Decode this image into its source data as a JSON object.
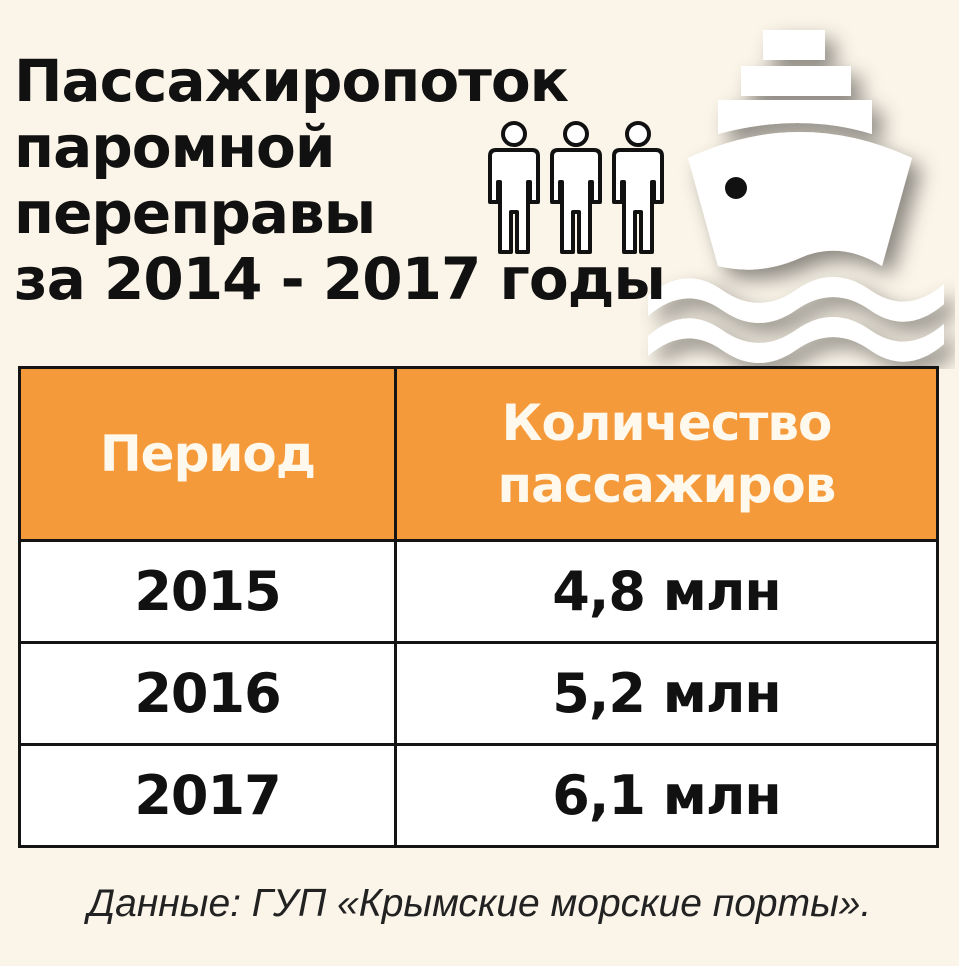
{
  "title_lines": [
    "Пассажиропоток",
    "паромной",
    "переправы",
    "за 2014 - 2017 годы"
  ],
  "chart_data": {
    "type": "table",
    "columns": [
      "Период",
      "Количество пассажиров"
    ],
    "header_lines": [
      [
        "Период"
      ],
      [
        "Количество",
        "пассажиров"
      ]
    ],
    "rows": [
      {
        "period": "2015",
        "passengers": "4,8 млн"
      },
      {
        "period": "2016",
        "passengers": "5,2 млн"
      },
      {
        "period": "2017",
        "passengers": "6,1 млн"
      }
    ],
    "unit": "млн"
  },
  "source": "Данные: ГУП «Крымские морские порты».",
  "icons": [
    "people-icon",
    "ship-icon",
    "waves-icon"
  ],
  "colors": {
    "header_bg": "#f59a3a",
    "header_text": "#fff8ec",
    "background": "#fbf5e9",
    "border": "#141414"
  }
}
